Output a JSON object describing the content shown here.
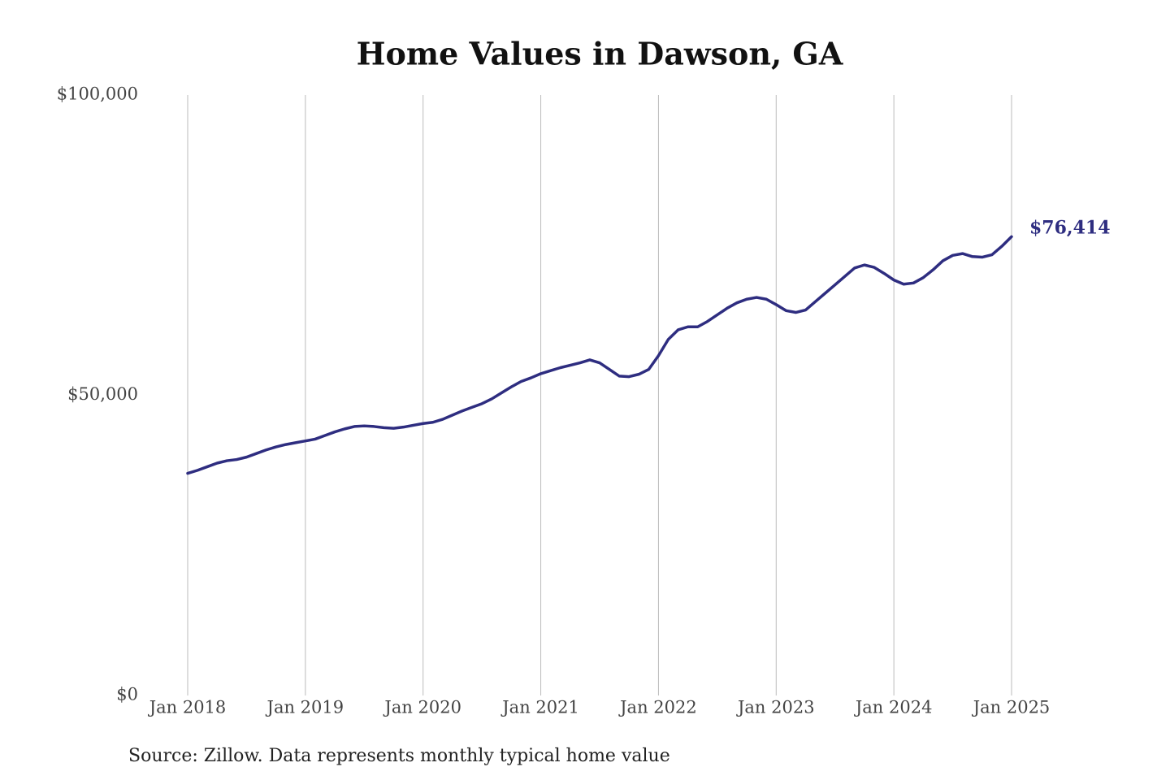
{
  "chart_data": {
    "type": "line",
    "title": "Home Values in Dawson, GA",
    "source": "Source: Zillow. Data represents monthly typical home value",
    "x": [
      "2018-01",
      "2018-02",
      "2018-03",
      "2018-04",
      "2018-05",
      "2018-06",
      "2018-07",
      "2018-08",
      "2018-09",
      "2018-10",
      "2018-11",
      "2018-12",
      "2019-01",
      "2019-02",
      "2019-03",
      "2019-04",
      "2019-05",
      "2019-06",
      "2019-07",
      "2019-08",
      "2019-09",
      "2019-10",
      "2019-11",
      "2019-12",
      "2020-01",
      "2020-02",
      "2020-03",
      "2020-04",
      "2020-05",
      "2020-06",
      "2020-07",
      "2020-08",
      "2020-09",
      "2020-10",
      "2020-11",
      "2020-12",
      "2021-01",
      "2021-02",
      "2021-03",
      "2021-04",
      "2021-05",
      "2021-06",
      "2021-07",
      "2021-08",
      "2021-09",
      "2021-10",
      "2021-11",
      "2021-12",
      "2022-01",
      "2022-02",
      "2022-03",
      "2022-04",
      "2022-05",
      "2022-06",
      "2022-07",
      "2022-08",
      "2022-09",
      "2022-10",
      "2022-11",
      "2022-12",
      "2023-01",
      "2023-02",
      "2023-03",
      "2023-04",
      "2023-05",
      "2023-06",
      "2023-07",
      "2023-08",
      "2023-09",
      "2023-10",
      "2023-11",
      "2023-12",
      "2024-01",
      "2024-02",
      "2024-03",
      "2024-04",
      "2024-05",
      "2024-06",
      "2024-07",
      "2024-08",
      "2024-09",
      "2024-10",
      "2024-11",
      "2024-12",
      "2025-01"
    ],
    "series": [
      {
        "name": "Dawson, GA",
        "color": "#2e2d80",
        "values": [
          37000,
          37500,
          38100,
          38700,
          39100,
          39300,
          39700,
          40300,
          40900,
          41400,
          41800,
          42100,
          42400,
          42700,
          43300,
          43900,
          44400,
          44800,
          44900,
          44800,
          44600,
          44500,
          44700,
          45000,
          45300,
          45500,
          46000,
          46700,
          47400,
          48000,
          48600,
          49400,
          50400,
          51400,
          52300,
          52900,
          53600,
          54100,
          54600,
          55000,
          55400,
          55900,
          55400,
          54300,
          53200,
          53100,
          53500,
          54300,
          56600,
          59300,
          60900,
          61400,
          61400,
          62300,
          63400,
          64500,
          65400,
          66000,
          66300,
          66000,
          65100,
          64100,
          63800,
          64200,
          65600,
          67000,
          68400,
          69800,
          71200,
          71700,
          71300,
          70300,
          69200,
          68500,
          68700,
          69600,
          70900,
          72400,
          73300,
          73600,
          73100,
          73000,
          73400,
          74800,
          76414
        ],
        "value_labels": [
          null,
          null,
          null,
          null,
          null,
          null,
          null,
          null,
          null,
          null,
          null,
          null,
          null,
          null,
          null,
          null,
          null,
          null,
          null,
          null,
          null,
          null,
          null,
          null,
          null,
          null,
          null,
          null,
          null,
          null,
          null,
          null,
          null,
          null,
          null,
          null,
          null,
          null,
          null,
          null,
          null,
          null,
          null,
          null,
          null,
          null,
          null,
          null,
          null,
          null,
          null,
          null,
          null,
          null,
          null,
          null,
          null,
          null,
          null,
          null,
          null,
          null,
          null,
          null,
          null,
          null,
          null,
          null,
          null,
          null,
          null,
          null,
          null,
          null,
          null,
          null,
          null,
          null,
          null,
          null,
          null,
          null,
          null,
          null,
          "$76,414"
        ]
      }
    ],
    "xlim": [
      "2018-01",
      "2025-01"
    ],
    "xticks": [
      {
        "value": "2018-01",
        "label": "Jan 2018"
      },
      {
        "value": "2019-01",
        "label": "Jan 2019"
      },
      {
        "value": "2020-01",
        "label": "Jan 2020"
      },
      {
        "value": "2021-01",
        "label": "Jan 2021"
      },
      {
        "value": "2022-01",
        "label": "Jan 2022"
      },
      {
        "value": "2023-01",
        "label": "Jan 2023"
      },
      {
        "value": "2024-01",
        "label": "Jan 2024"
      },
      {
        "value": "2025-01",
        "label": "Jan 2025"
      }
    ],
    "ylim": [
      0,
      100000
    ],
    "yticks": [
      {
        "value": 0,
        "label": "$0"
      },
      {
        "value": 50000,
        "label": "$50,000"
      },
      {
        "value": 100000,
        "label": "$100,000"
      }
    ],
    "grid": "x"
  }
}
